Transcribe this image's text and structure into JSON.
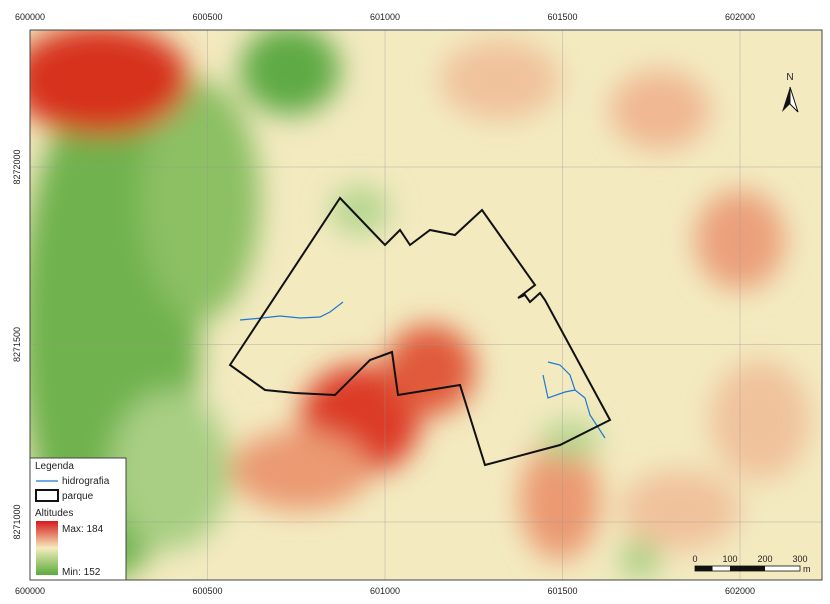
{
  "map": {
    "x_ticks": [
      600000,
      600500,
      601000,
      601500,
      602000
    ],
    "y_ticks": [
      8272000,
      8271500,
      8271000
    ],
    "north": "N",
    "legend": {
      "title": "Legenda",
      "items": [
        "hidrografia",
        "parque"
      ],
      "ramp_title": "Altitudes",
      "max": "Max: 184",
      "min": "Min: 152"
    },
    "scale_bar": {
      "labels": [
        "0",
        "100",
        "200",
        "300"
      ],
      "unit": "m"
    }
  }
}
